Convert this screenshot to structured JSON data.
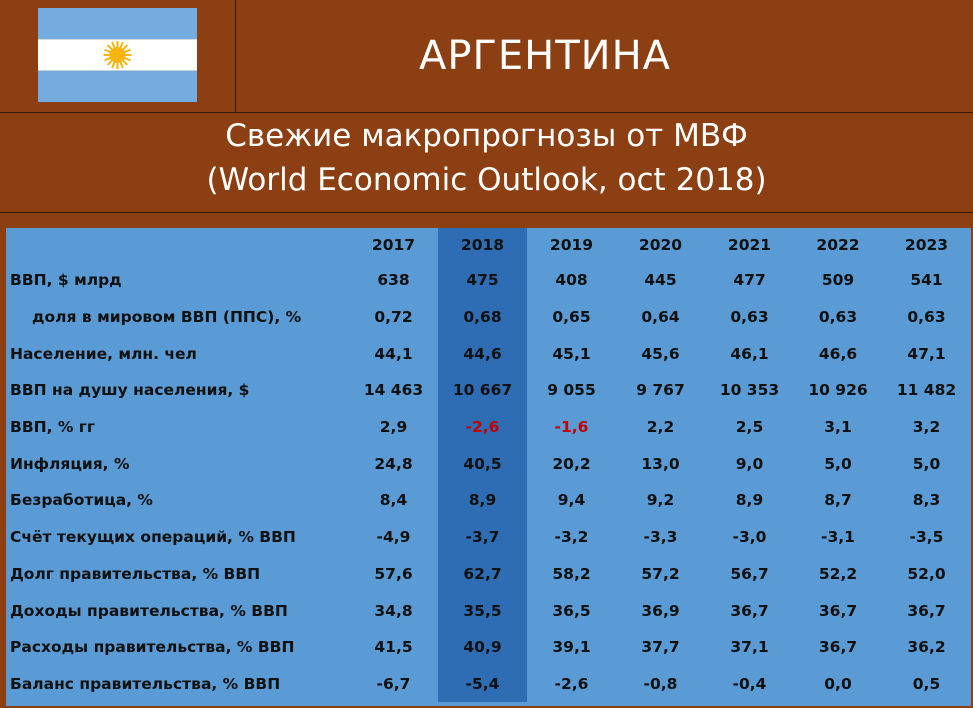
{
  "header": {
    "country": "АРГЕНТИНА",
    "flag_colors": {
      "blue": "#74acdf",
      "white": "#ffffff",
      "sun": "#f6b40e"
    },
    "flag_icon": "argentina-flag-icon"
  },
  "subtitle": {
    "line1": "Свежие макропрогнозы от МВФ",
    "line2": "(World Economic Outlook, oct 2018)"
  },
  "colors": {
    "background": "#8b3f12",
    "table": "#5b9bd5",
    "highlight_column": "#2e6db4",
    "negative_2018_2019": "#c00000"
  },
  "chart_data": {
    "type": "table",
    "highlighted_column": "2018",
    "columns": [
      "2017",
      "2018",
      "2019",
      "2020",
      "2021",
      "2022",
      "2023"
    ],
    "rows": [
      {
        "label": "ВВП, $ млрд",
        "indent": false,
        "values": [
          "638",
          "475",
          "408",
          "445",
          "477",
          "509",
          "541"
        ]
      },
      {
        "label": "доля в мировом ВВП (ППС), %",
        "indent": true,
        "values": [
          "0,72",
          "0,68",
          "0,65",
          "0,64",
          "0,63",
          "0,63",
          "0,63"
        ]
      },
      {
        "label": "Население, млн. чел",
        "indent": false,
        "values": [
          "44,1",
          "44,6",
          "45,1",
          "45,6",
          "46,1",
          "46,6",
          "47,1"
        ]
      },
      {
        "label": "ВВП на душу населения, $",
        "indent": false,
        "values": [
          "14 463",
          "10 667",
          "9 055",
          "9 767",
          "10 353",
          "10 926",
          "11 482"
        ]
      },
      {
        "label": "ВВП, % гг",
        "indent": false,
        "values": [
          "2,9",
          "-2,6",
          "-1,6",
          "2,2",
          "2,5",
          "3,1",
          "3,2"
        ],
        "red_values": [
          1,
          2
        ]
      },
      {
        "label": "Инфляция, %",
        "indent": false,
        "values": [
          "24,8",
          "40,5",
          "20,2",
          "13,0",
          "9,0",
          "5,0",
          "5,0"
        ]
      },
      {
        "label": "Безработица, %",
        "indent": false,
        "values": [
          "8,4",
          "8,9",
          "9,4",
          "9,2",
          "8,9",
          "8,7",
          "8,3"
        ]
      },
      {
        "label": "Счёт текущих операций, % ВВП",
        "indent": false,
        "values": [
          "-4,9",
          "-3,7",
          "-3,2",
          "-3,3",
          "-3,0",
          "-3,1",
          "-3,5"
        ]
      },
      {
        "label": "Долг правительства, % ВВП",
        "indent": false,
        "values": [
          "57,6",
          "62,7",
          "58,2",
          "57,2",
          "56,7",
          "52,2",
          "52,0"
        ]
      },
      {
        "label": "Доходы правительства, % ВВП",
        "indent": false,
        "values": [
          "34,8",
          "35,5",
          "36,5",
          "36,9",
          "36,7",
          "36,7",
          "36,7"
        ]
      },
      {
        "label": "Расходы правительства, % ВВП",
        "indent": false,
        "values": [
          "41,5",
          "40,9",
          "39,1",
          "37,7",
          "37,1",
          "36,7",
          "36,2"
        ]
      },
      {
        "label": "Баланс правительства, % ВВП",
        "indent": false,
        "values": [
          "-6,7",
          "-5,4",
          "-2,6",
          "-0,8",
          "-0,4",
          "0,0",
          "0,5"
        ]
      }
    ]
  }
}
